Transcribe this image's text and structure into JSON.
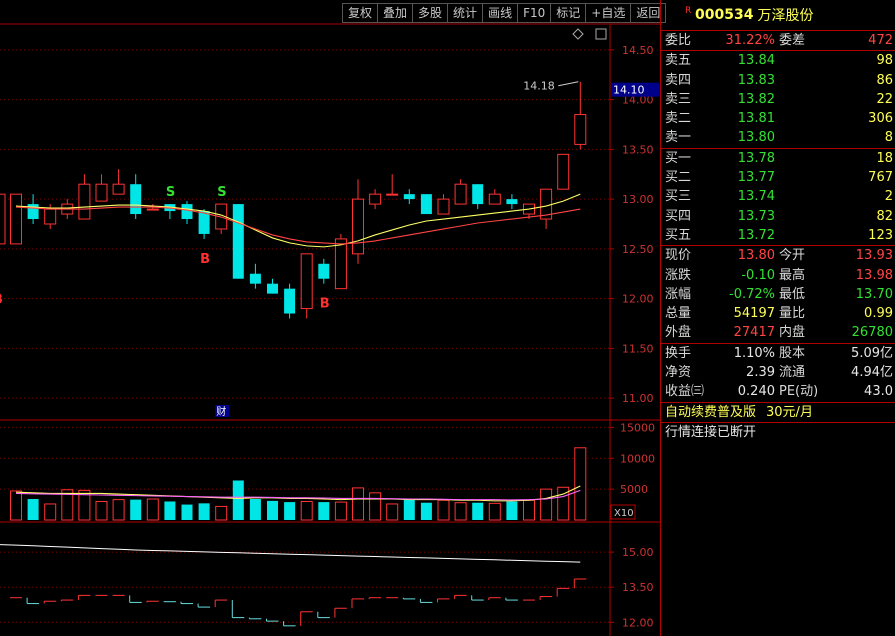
{
  "toolbar": [
    "复权",
    "叠加",
    "多股",
    "统计",
    "画线",
    "F10",
    "标记",
    "+自选",
    "返回"
  ],
  "stock": {
    "r_mark": "R",
    "code": "000534",
    "name": "万泽股份"
  },
  "wei": {
    "wb_label": "委比",
    "wb_value": "31.22%",
    "wc_label": "委差",
    "wc_value": "472"
  },
  "sells": [
    {
      "label": "卖五",
      "price": "13.84",
      "vol": "98"
    },
    {
      "label": "卖四",
      "price": "13.83",
      "vol": "86"
    },
    {
      "label": "卖三",
      "price": "13.82",
      "vol": "22"
    },
    {
      "label": "卖二",
      "price": "13.81",
      "vol": "306"
    },
    {
      "label": "卖一",
      "price": "13.80",
      "vol": "8"
    }
  ],
  "buys": [
    {
      "label": "买一",
      "price": "13.78",
      "vol": "18"
    },
    {
      "label": "买二",
      "price": "13.77",
      "vol": "767"
    },
    {
      "label": "买三",
      "price": "13.74",
      "vol": "2"
    },
    {
      "label": "买四",
      "price": "13.73",
      "vol": "82"
    },
    {
      "label": "买五",
      "price": "13.72",
      "vol": "123"
    }
  ],
  "quote": [
    {
      "l1": "现价",
      "v1": "13.80",
      "c1": "red",
      "l2": "今开",
      "v2": "13.93",
      "c2": "red"
    },
    {
      "l1": "涨跌",
      "v1": "-0.10",
      "c1": "green",
      "l2": "最高",
      "v2": "13.98",
      "c2": "red"
    },
    {
      "l1": "涨幅",
      "v1": "-0.72%",
      "c1": "green",
      "l2": "最低",
      "v2": "13.70",
      "c2": "green"
    },
    {
      "l1": "总量",
      "v1": "54197",
      "c1": "yellow",
      "l2": "量比",
      "v2": "0.99",
      "c2": "yellow"
    },
    {
      "l1": "外盘",
      "v1": "27417",
      "c1": "red",
      "l2": "内盘",
      "v2": "26780",
      "c2": "green"
    }
  ],
  "fund": [
    {
      "l1": "换手",
      "v1": "1.10%",
      "l2": "股本",
      "v2": "5.09亿"
    },
    {
      "l1": "净资",
      "v1": "2.39",
      "l2": "流通",
      "v2": "4.94亿"
    },
    {
      "l1": "收益㈢",
      "v1": "0.240",
      "l2": "PE(动)",
      "v2": "43.0"
    }
  ],
  "promo": {
    "text": "自动续费普及版",
    "price": "30元/月"
  },
  "status": "行情连接已断开",
  "chart_data": {
    "type": "candlestick",
    "main_axis": {
      "ticks": [
        "14.50",
        "14.00",
        "13.50",
        "13.00",
        "12.50",
        "12.00",
        "11.50",
        "11.00"
      ],
      "range": [
        10.8,
        14.72
      ]
    },
    "current_price_label": "14.10",
    "high_annotation": "14.18",
    "candles": [
      {
        "o": 12.55,
        "c": 13.05,
        "h": 13.05,
        "l": 12.55
      },
      {
        "o": 12.95,
        "c": 12.8,
        "h": 13.05,
        "l": 12.75
      },
      {
        "o": 12.75,
        "c": 12.9,
        "h": 12.95,
        "l": 12.7
      },
      {
        "o": 12.85,
        "c": 12.95,
        "h": 13.0,
        "l": 12.8
      },
      {
        "o": 12.8,
        "c": 13.15,
        "h": 13.25,
        "l": 12.8
      },
      {
        "o": 12.98,
        "c": 13.15,
        "h": 13.25,
        "l": 12.98
      },
      {
        "o": 13.05,
        "c": 13.15,
        "h": 13.3,
        "l": 13.05
      },
      {
        "o": 13.15,
        "c": 12.85,
        "h": 13.25,
        "l": 12.8
      },
      {
        "o": 12.9,
        "c": 12.9,
        "h": 12.95,
        "l": 12.9
      },
      {
        "o": 12.95,
        "c": 12.88,
        "h": 12.95,
        "l": 12.8
      },
      {
        "o": 12.95,
        "c": 12.8,
        "h": 12.98,
        "l": 12.75
      },
      {
        "o": 12.88,
        "c": 12.65,
        "h": 12.9,
        "l": 12.6
      },
      {
        "o": 12.7,
        "c": 12.95,
        "h": 12.95,
        "l": 12.65
      },
      {
        "o": 12.95,
        "c": 12.2,
        "h": 12.95,
        "l": 12.2
      },
      {
        "o": 12.25,
        "c": 12.15,
        "h": 12.35,
        "l": 12.1
      },
      {
        "o": 12.15,
        "c": 12.05,
        "h": 12.2,
        "l": 12.05
      },
      {
        "o": 12.1,
        "c": 11.85,
        "h": 12.15,
        "l": 11.8
      },
      {
        "o": 11.9,
        "c": 12.45,
        "h": 12.45,
        "l": 11.8
      },
      {
        "o": 12.35,
        "c": 12.2,
        "h": 12.4,
        "l": 12.15
      },
      {
        "o": 12.1,
        "c": 12.6,
        "h": 12.65,
        "l": 12.1
      },
      {
        "o": 12.45,
        "c": 13.0,
        "h": 13.2,
        "l": 12.35
      },
      {
        "o": 12.95,
        "c": 13.05,
        "h": 13.1,
        "l": 12.9
      },
      {
        "o": 13.05,
        "c": 13.05,
        "h": 13.25,
        "l": 13.05
      },
      {
        "o": 13.05,
        "c": 13.0,
        "h": 13.1,
        "l": 12.95
      },
      {
        "o": 13.05,
        "c": 12.85,
        "h": 13.05,
        "l": 12.85
      },
      {
        "o": 12.85,
        "c": 13.0,
        "h": 13.05,
        "l": 12.85
      },
      {
        "o": 12.95,
        "c": 13.15,
        "h": 13.2,
        "l": 12.95
      },
      {
        "o": 13.15,
        "c": 12.95,
        "h": 13.15,
        "l": 12.9
      },
      {
        "o": 12.95,
        "c": 13.05,
        "h": 13.1,
        "l": 12.95
      },
      {
        "o": 13.0,
        "c": 12.95,
        "h": 13.05,
        "l": 12.9
      },
      {
        "o": 12.85,
        "c": 12.95,
        "h": 12.95,
        "l": 12.8
      },
      {
        "o": 12.8,
        "c": 13.1,
        "h": 13.1,
        "l": 12.7
      },
      {
        "o": 13.1,
        "c": 13.45,
        "h": 13.45,
        "l": 13.1
      },
      {
        "o": 13.55,
        "c": 13.85,
        "h": 14.18,
        "l": 13.5
      }
    ],
    "ma_short": [
      12.93,
      12.92,
      12.91,
      12.91,
      12.92,
      12.93,
      12.94,
      12.94,
      12.93,
      12.92,
      12.9,
      12.88,
      12.84,
      12.77,
      12.69,
      12.61,
      12.56,
      12.53,
      12.52,
      12.54,
      12.58,
      12.64,
      12.69,
      12.74,
      12.78,
      12.8,
      12.82,
      12.84,
      12.86,
      12.88,
      12.9,
      12.93,
      12.98,
      13.05
    ],
    "ma_long": [
      12.92,
      12.91,
      12.9,
      12.9,
      12.9,
      12.91,
      12.92,
      12.92,
      12.92,
      12.91,
      12.89,
      12.86,
      12.82,
      12.76,
      12.7,
      12.64,
      12.6,
      12.57,
      12.56,
      12.55,
      12.56,
      12.58,
      12.61,
      12.64,
      12.67,
      12.7,
      12.73,
      12.76,
      12.78,
      12.8,
      12.82,
      12.84,
      12.87,
      12.9
    ],
    "markers": [
      {
        "i": 9,
        "text": "S",
        "kind": "sell"
      },
      {
        "i": 12,
        "text": "S",
        "kind": "sell"
      },
      {
        "i": 11,
        "text": "B",
        "kind": "buy"
      },
      {
        "i": 18,
        "text": "B",
        "kind": "buy"
      },
      {
        "i": -1,
        "text": "B",
        "kind": "buy"
      }
    ],
    "fin_marker": {
      "i": 12,
      "text": "财"
    },
    "volume_axis": {
      "ticks": [
        "15000",
        "10000",
        "5000"
      ],
      "range": [
        0,
        16200
      ],
      "unit_label": "X10"
    },
    "volumes": [
      4700,
      3400,
      2600,
      4900,
      4800,
      3000,
      3300,
      3300,
      3400,
      3000,
      2500,
      2700,
      2200,
      6400,
      3400,
      3100,
      2900,
      3000,
      2900,
      2900,
      5200,
      4400,
      2600,
      3300,
      2800,
      3200,
      2800,
      2800,
      2700,
      3000,
      3200,
      5000,
      5300,
      11700
    ],
    "vol_ma": [
      4500,
      4400,
      4300,
      4300,
      4300,
      4300,
      4200,
      4100,
      4000,
      3900,
      3800,
      3700,
      3600,
      3500,
      3600,
      3600,
      3500,
      3500,
      3400,
      3300,
      3400,
      3400,
      3400,
      3300,
      3300,
      3300,
      3200,
      3200,
      3100,
      3100,
      3200,
      3500,
      4200,
      5500
    ],
    "vol_ma2": [
      4300,
      4250,
      4200,
      4150,
      4100,
      4050,
      4000,
      3950,
      3900,
      3850,
      3800,
      3750,
      3700,
      3700,
      3700,
      3650,
      3600,
      3600,
      3550,
      3500,
      3500,
      3500,
      3450,
      3400,
      3400,
      3350,
      3300,
      3300,
      3300,
      3250,
      3300,
      3400,
      3800,
      4800
    ],
    "lower_axis": {
      "ticks": [
        "15.00",
        "13.50",
        "12.00"
      ],
      "range": [
        11.5,
        16.2
      ]
    },
    "lower_white": [
      15.3,
      15.27,
      15.24,
      15.21,
      15.18,
      15.15,
      15.12,
      15.09,
      15.07,
      15.05,
      15.03,
      15.01,
      14.99,
      14.97,
      14.95,
      14.93,
      14.91,
      14.89,
      14.87,
      14.85,
      14.83,
      14.81,
      14.79,
      14.77,
      14.75,
      14.73,
      14.71,
      14.69,
      14.67,
      14.65,
      14.63,
      14.61,
      14.59,
      14.57
    ]
  }
}
